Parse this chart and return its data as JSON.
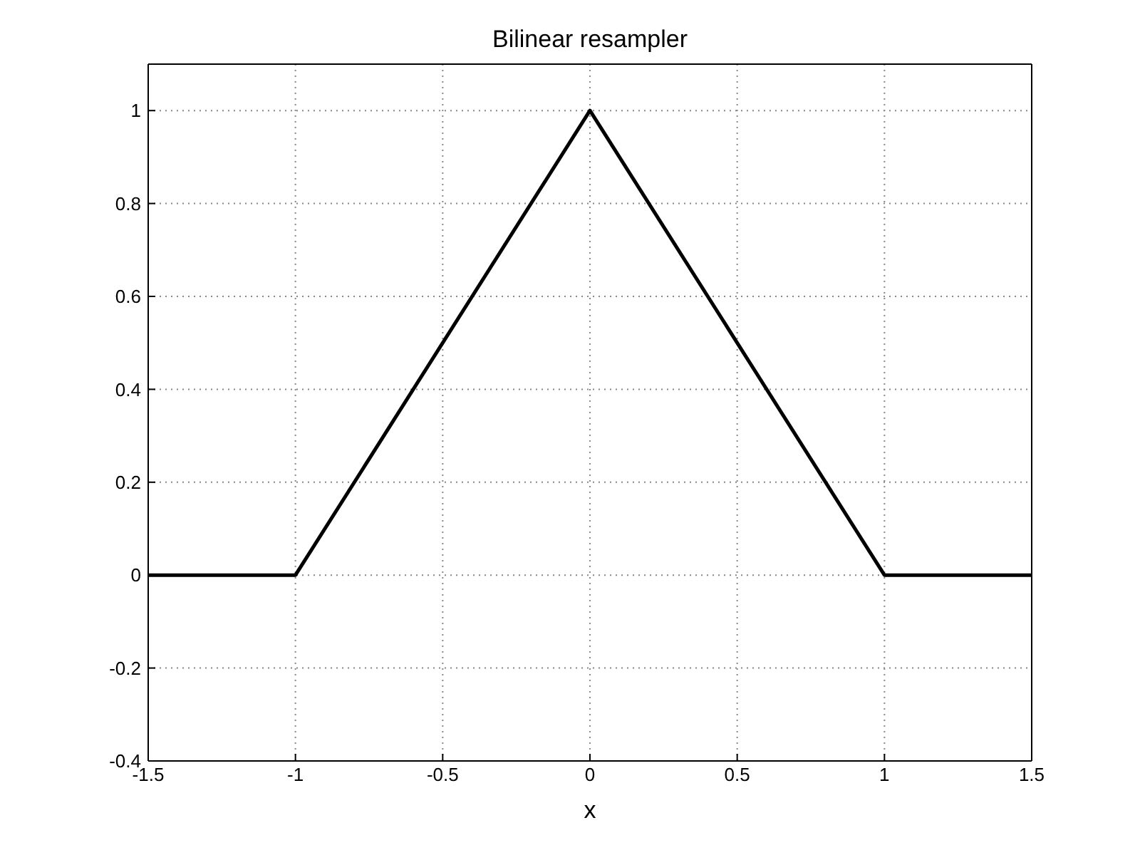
{
  "chart_data": {
    "type": "line",
    "title": "Bilinear resampler",
    "xlabel": "x",
    "x": [
      -1.5,
      -1,
      0,
      1,
      1.5
    ],
    "series": [
      {
        "color": "#000000",
        "values": [
          0,
          0,
          1,
          0,
          0
        ]
      }
    ],
    "xlim": [
      -1.5,
      1.5
    ],
    "xticks": [
      -1.5,
      -1,
      -0.5,
      0,
      0.5,
      1,
      1.5
    ],
    "ylim": [
      -0.4,
      1.1
    ],
    "yticks": [
      -0.4,
      -0.2,
      0,
      0.2,
      0.4,
      0.6,
      0.8,
      1
    ],
    "grid": true,
    "marker": "none",
    "line_style": "solid"
  }
}
